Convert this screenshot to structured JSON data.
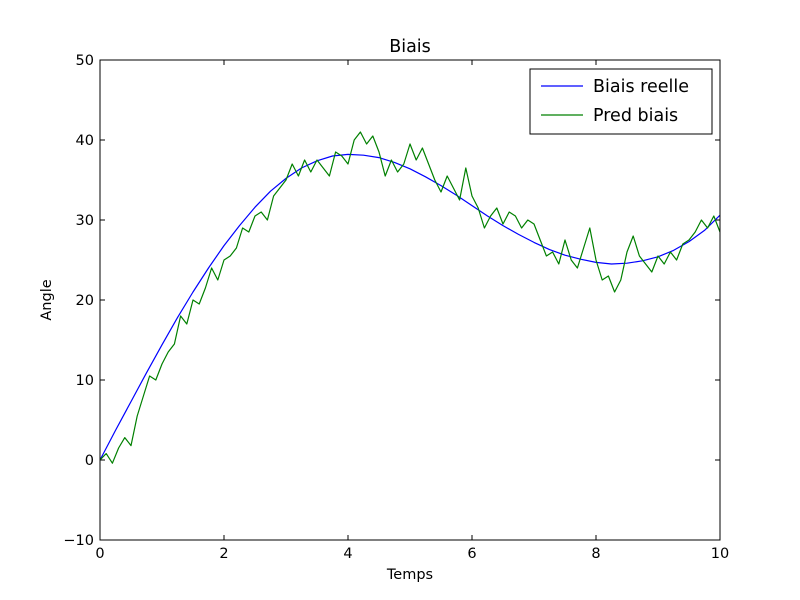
{
  "chart_data": {
    "type": "line",
    "title": "Biais",
    "xlabel": "Temps",
    "ylabel": "Angle",
    "xlim": [
      0,
      10
    ],
    "ylim": [
      -10,
      50
    ],
    "x_ticks": [
      0,
      2,
      4,
      6,
      8,
      10
    ],
    "y_ticks": [
      -10,
      0,
      10,
      20,
      30,
      40,
      50
    ],
    "x_tick_labels": [
      "0",
      "2",
      "4",
      "6",
      "8",
      "10"
    ],
    "y_tick_labels": [
      "−10",
      "0",
      "10",
      "20",
      "30",
      "40",
      "50"
    ],
    "grid": false,
    "legend_position": "top-right",
    "series": [
      {
        "name": "Biais reelle",
        "color": "#0000ff",
        "x": [
          0,
          0.25,
          0.5,
          0.75,
          1.0,
          1.25,
          1.5,
          1.75,
          2.0,
          2.25,
          2.5,
          2.75,
          3.0,
          3.25,
          3.5,
          3.75,
          4.0,
          4.25,
          4.5,
          4.75,
          5.0,
          5.25,
          5.5,
          5.75,
          6.0,
          6.25,
          6.5,
          6.75,
          7.0,
          7.25,
          7.5,
          7.75,
          8.0,
          8.25,
          8.5,
          8.75,
          9.0,
          9.25,
          9.5,
          9.75,
          10.0
        ],
        "values": [
          0.0,
          3.7,
          7.3,
          10.9,
          14.4,
          17.8,
          21.0,
          24.0,
          26.8,
          29.3,
          31.6,
          33.6,
          35.2,
          36.5,
          37.4,
          38.0,
          38.2,
          38.1,
          37.8,
          37.2,
          36.4,
          35.4,
          34.3,
          33.1,
          31.8,
          30.5,
          29.3,
          28.2,
          27.2,
          26.3,
          25.6,
          25.1,
          24.7,
          24.5,
          24.6,
          24.9,
          25.4,
          26.2,
          27.3,
          28.7,
          30.6
        ]
      },
      {
        "name": "Pred biais",
        "color": "#008000",
        "x": [
          0,
          0.1,
          0.2,
          0.3,
          0.4,
          0.5,
          0.6,
          0.7,
          0.8,
          0.9,
          1.0,
          1.1,
          1.2,
          1.3,
          1.4,
          1.5,
          1.6,
          1.7,
          1.8,
          1.9,
          2.0,
          2.1,
          2.2,
          2.3,
          2.4,
          2.5,
          2.6,
          2.7,
          2.8,
          2.9,
          3.0,
          3.1,
          3.2,
          3.3,
          3.4,
          3.5,
          3.6,
          3.7,
          3.8,
          3.9,
          4.0,
          4.1,
          4.2,
          4.3,
          4.4,
          4.5,
          4.6,
          4.7,
          4.8,
          4.9,
          5.0,
          5.1,
          5.2,
          5.3,
          5.4,
          5.5,
          5.6,
          5.7,
          5.8,
          5.9,
          6.0,
          6.1,
          6.2,
          6.3,
          6.4,
          6.5,
          6.6,
          6.7,
          6.8,
          6.9,
          7.0,
          7.1,
          7.2,
          7.3,
          7.4,
          7.5,
          7.6,
          7.7,
          7.8,
          7.9,
          8.0,
          8.1,
          8.2,
          8.3,
          8.4,
          8.5,
          8.6,
          8.7,
          8.8,
          8.9,
          9.0,
          9.1,
          9.2,
          9.3,
          9.4,
          9.5,
          9.6,
          9.7,
          9.8,
          9.9,
          10.0
        ],
        "values": [
          0.0,
          0.8,
          -0.4,
          1.5,
          2.8,
          1.8,
          5.5,
          8.0,
          10.5,
          10.0,
          12.0,
          13.5,
          14.5,
          18.0,
          17.0,
          20.0,
          19.5,
          21.5,
          24.0,
          22.5,
          25.0,
          25.5,
          26.5,
          29.0,
          28.5,
          30.5,
          31.0,
          30.0,
          33.0,
          34.0,
          35.0,
          37.0,
          35.5,
          37.5,
          36.0,
          37.5,
          36.5,
          35.5,
          38.5,
          38.0,
          37.0,
          40.0,
          41.0,
          39.5,
          40.5,
          38.5,
          35.5,
          37.5,
          36.0,
          37.0,
          39.5,
          37.5,
          39.0,
          37.0,
          35.0,
          33.5,
          35.5,
          34.0,
          32.5,
          36.5,
          33.0,
          31.5,
          29.0,
          30.5,
          31.5,
          29.5,
          31.0,
          30.5,
          29.0,
          30.0,
          29.5,
          27.5,
          25.5,
          26.0,
          24.5,
          27.5,
          25.0,
          24.0,
          26.5,
          29.0,
          25.0,
          22.5,
          23.0,
          21.0,
          22.5,
          26.0,
          28.0,
          25.5,
          24.5,
          23.5,
          25.5,
          24.5,
          26.0,
          25.0,
          27.0,
          27.5,
          28.5,
          30.0,
          29.0,
          30.5,
          28.5
        ]
      }
    ]
  }
}
